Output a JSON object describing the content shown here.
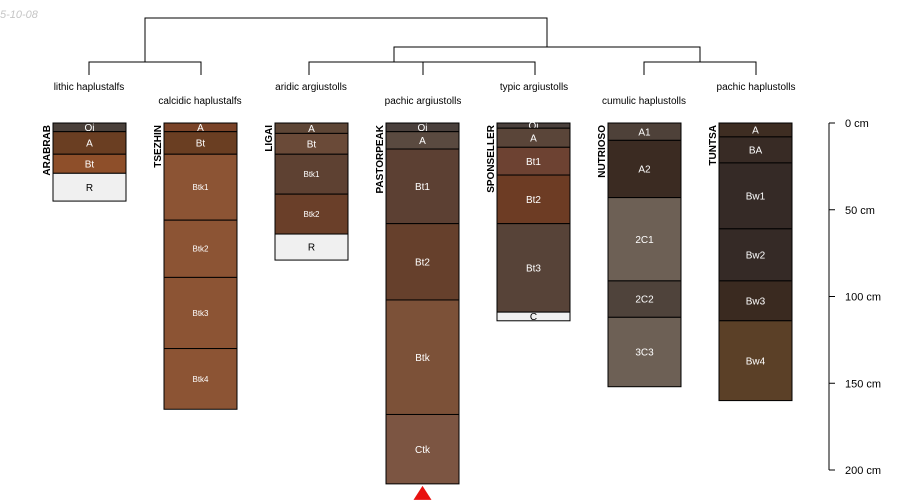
{
  "header": {
    "date_stamp": "5-10-08"
  },
  "colors": {
    "line": "#000000",
    "dark_text": "#000000",
    "light_text": "#ffffff",
    "missing_marker": "#e8110f"
  },
  "depth_axis": {
    "ticks": [
      {
        "depth": 0,
        "label": "0 cm"
      },
      {
        "depth": 50,
        "label": "50 cm"
      },
      {
        "depth": 100,
        "label": "100 cm"
      },
      {
        "depth": 150,
        "label": "150 cm"
      },
      {
        "depth": 200,
        "label": "200 cm"
      }
    ]
  },
  "profiles": [
    {
      "name": "ARABRAB",
      "taxon": "lithic haplustalfs",
      "horizons": [
        {
          "label": "Oi",
          "top": 0,
          "bottom": 5,
          "color": "#4a403a"
        },
        {
          "label": "A",
          "top": 5,
          "bottom": 18,
          "color": "#6a3e22"
        },
        {
          "label": "Bt",
          "top": 18,
          "bottom": 29,
          "color": "#8e4f2a"
        },
        {
          "label": "R",
          "top": 29,
          "bottom": 45,
          "color": "#f0f0f0"
        }
      ]
    },
    {
      "name": "TSEZHIN",
      "taxon": "calcidic haplustalfs",
      "horizons": [
        {
          "label": "A",
          "top": 0,
          "bottom": 5,
          "color": "#7a4328"
        },
        {
          "label": "Bt",
          "top": 5,
          "bottom": 18,
          "color": "#6a3e22"
        },
        {
          "label": "Btk1",
          "top": 18,
          "bottom": 56,
          "color": "#8c5434"
        },
        {
          "label": "Btk2",
          "top": 56,
          "bottom": 89,
          "color": "#8c5434"
        },
        {
          "label": "Btk3",
          "top": 89,
          "bottom": 130,
          "color": "#8c5434"
        },
        {
          "label": "Btk4",
          "top": 130,
          "bottom": 165,
          "color": "#8c5434"
        }
      ]
    },
    {
      "name": "LIGAI",
      "taxon": "aridic argiustolls",
      "horizons": [
        {
          "label": "A",
          "top": 0,
          "bottom": 6,
          "color": "#5e4636"
        },
        {
          "label": "Bt",
          "top": 6,
          "bottom": 18,
          "color": "#6a4a38"
        },
        {
          "label": "Btk1",
          "top": 18,
          "bottom": 41,
          "color": "#5e4132"
        },
        {
          "label": "Btk2",
          "top": 41,
          "bottom": 64,
          "color": "#6a3f29"
        },
        {
          "label": "R",
          "top": 64,
          "bottom": 79,
          "color": "#f0f0f0"
        }
      ]
    },
    {
      "name": "PASTORPEAK",
      "taxon": "pachic argiustolls",
      "missing_bottom": true,
      "horizons": [
        {
          "label": "Oi",
          "top": 0,
          "bottom": 5,
          "color": "#4a403c"
        },
        {
          "label": "A",
          "top": 5,
          "bottom": 15,
          "color": "#5a4a40"
        },
        {
          "label": "Bt1",
          "top": 15,
          "bottom": 58,
          "color": "#5c4033"
        },
        {
          "label": "Bt2",
          "top": 58,
          "bottom": 102,
          "color": "#66402c"
        },
        {
          "label": "Btk",
          "top": 102,
          "bottom": 168,
          "color": "#7c5138"
        },
        {
          "label": "Ctk",
          "top": 168,
          "bottom": 208,
          "color": "#7c5542"
        }
      ]
    },
    {
      "name": "SPONSELLER",
      "taxon": "typic argiustolls",
      "horizons": [
        {
          "label": "Oi",
          "top": 0,
          "bottom": 3,
          "color": "#4a403c"
        },
        {
          "label": "A",
          "top": 3,
          "bottom": 14,
          "color": "#5a4539"
        },
        {
          "label": "Bt1",
          "top": 14,
          "bottom": 30,
          "color": "#6d4232"
        },
        {
          "label": "Bt2",
          "top": 30,
          "bottom": 58,
          "color": "#6d3c24"
        },
        {
          "label": "Bt3",
          "top": 58,
          "bottom": 109,
          "color": "#574338"
        },
        {
          "label": "C",
          "top": 109,
          "bottom": 114,
          "color": "#f0f0f0"
        }
      ]
    },
    {
      "name": "NUTRIOSO",
      "taxon": "cumulic haplustolls",
      "horizons": [
        {
          "label": "A1",
          "top": 0,
          "bottom": 10,
          "color": "#4e4139"
        },
        {
          "label": "A2",
          "top": 10,
          "bottom": 43,
          "color": "#3b2b22"
        },
        {
          "label": "2C1",
          "top": 43,
          "bottom": 91,
          "color": "#6d6055"
        },
        {
          "label": "2C2",
          "top": 91,
          "bottom": 112,
          "color": "#4f433b"
        },
        {
          "label": "3C3",
          "top": 112,
          "bottom": 152,
          "color": "#6d6055"
        }
      ]
    },
    {
      "name": "TUNTSA",
      "taxon": "pachic haplustolls",
      "horizons": [
        {
          "label": "A",
          "top": 0,
          "bottom": 8,
          "color": "#3e2d22"
        },
        {
          "label": "BA",
          "top": 8,
          "bottom": 23,
          "color": "#382b25"
        },
        {
          "label": "Bw1",
          "top": 23,
          "bottom": 61,
          "color": "#352a26"
        },
        {
          "label": "Bw2",
          "top": 61,
          "bottom": 91,
          "color": "#352a26"
        },
        {
          "label": "Bw3",
          "top": 91,
          "bottom": 114,
          "color": "#3a2a20"
        },
        {
          "label": "Bw4",
          "top": 114,
          "bottom": 160,
          "color": "#5b4027"
        }
      ]
    }
  ]
}
